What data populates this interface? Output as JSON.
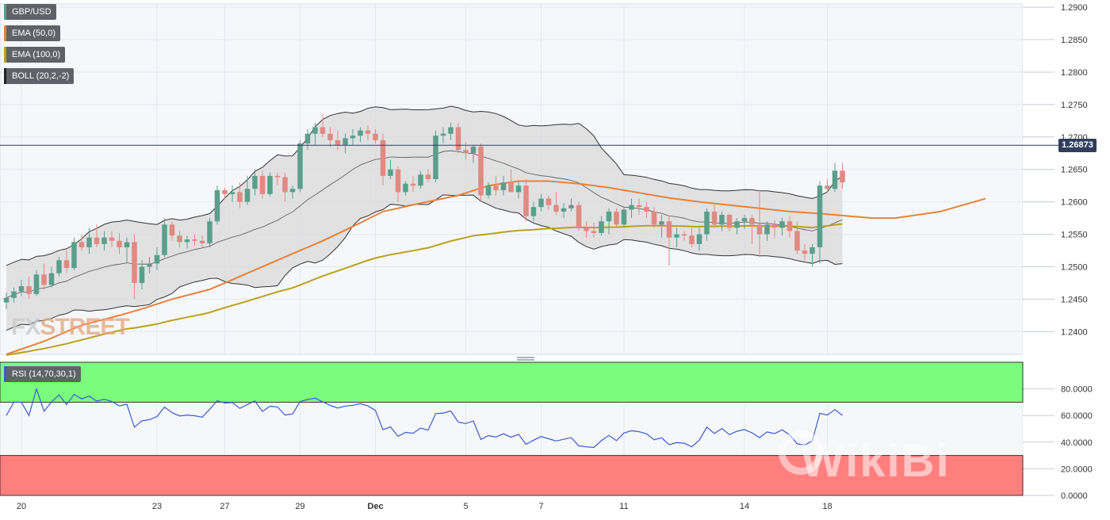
{
  "legend": {
    "pair": "GBP/USD",
    "ema50": "EMA (50,0)",
    "ema100": "EMA (100,0)",
    "boll": "BOLL (20,2,-2)",
    "rsi": "RSI (14,70,30,1)"
  },
  "colors": {
    "up": "#5a9f8a",
    "down": "#e08a82",
    "ema50": "#e8823a",
    "ema100": "#b9a21a",
    "boll": "#333333",
    "rsi_line": "#3a5bd0",
    "overbought": "#7cfc7c",
    "oversold": "#ff7f7f",
    "price_line": "#2f3e5c"
  },
  "logo": {
    "text_a": "FX",
    "text_b": "STREET"
  },
  "watermark": {
    "text": "WikiBi"
  },
  "chart_data": {
    "type": "candlestick",
    "title": "GBP/USD",
    "y_ticks": [
      "1.2900",
      "1.2850",
      "1.2800",
      "1.2750",
      "1.2700",
      "1.2650",
      "1.2600",
      "1.2550",
      "1.2500",
      "1.2450",
      "1.2400"
    ],
    "y_range": [
      1.2365,
      1.2905
    ],
    "last_price": 1.26873,
    "last_price_label": "1.26873",
    "x_ticks": [
      {
        "label": "20",
        "index": 2
      },
      {
        "label": "23",
        "index": 20
      },
      {
        "label": "27",
        "index": 29
      },
      {
        "label": "29",
        "index": 39
      },
      {
        "label": "Dec",
        "index": 49
      },
      {
        "label": "5",
        "index": 61
      },
      {
        "label": "7",
        "index": 71
      },
      {
        "label": "11",
        "index": 82
      },
      {
        "label": "14",
        "index": 98
      },
      {
        "label": "18",
        "index": 109
      }
    ],
    "candles": [
      [
        1.2445,
        1.246,
        1.2435,
        1.2452
      ],
      [
        1.2452,
        1.2468,
        1.2445,
        1.2462
      ],
      [
        1.2462,
        1.248,
        1.2455,
        1.247
      ],
      [
        1.247,
        1.2485,
        1.245,
        1.2458
      ],
      [
        1.2458,
        1.2495,
        1.2455,
        1.2488
      ],
      [
        1.2488,
        1.2505,
        1.2465,
        1.2472
      ],
      [
        1.2472,
        1.25,
        1.2468,
        1.249
      ],
      [
        1.249,
        1.2515,
        1.2485,
        1.251
      ],
      [
        1.251,
        1.2525,
        1.249,
        1.2498
      ],
      [
        1.2498,
        1.2545,
        1.2495,
        1.2538
      ],
      [
        1.2538,
        1.255,
        1.2525,
        1.253
      ],
      [
        1.253,
        1.256,
        1.252,
        1.2545
      ],
      [
        1.2545,
        1.2565,
        1.253,
        1.2535
      ],
      [
        1.2535,
        1.2555,
        1.2525,
        1.2545
      ],
      [
        1.2545,
        1.2555,
        1.253,
        1.254
      ],
      [
        1.254,
        1.2552,
        1.252,
        1.253
      ],
      [
        1.253,
        1.2545,
        1.2505,
        1.2538
      ],
      [
        1.2538,
        1.255,
        1.245,
        1.2475
      ],
      [
        1.2475,
        1.251,
        1.2465,
        1.25
      ],
      [
        1.25,
        1.2515,
        1.249,
        1.2505
      ],
      [
        1.2505,
        1.253,
        1.2495,
        1.2518
      ],
      [
        1.2518,
        1.2575,
        1.2515,
        1.2565
      ],
      [
        1.2565,
        1.257,
        1.254,
        1.2548
      ],
      [
        1.2548,
        1.2555,
        1.253,
        1.2538
      ],
      [
        1.2538,
        1.2548,
        1.2528,
        1.2542
      ],
      [
        1.2542,
        1.255,
        1.2532,
        1.254
      ],
      [
        1.254,
        1.2548,
        1.253,
        1.2536
      ],
      [
        1.2536,
        1.2575,
        1.253,
        1.257
      ],
      [
        1.257,
        1.2625,
        1.2565,
        1.2618
      ],
      [
        1.2618,
        1.2622,
        1.2605,
        1.2612
      ],
      [
        1.2612,
        1.2625,
        1.26,
        1.2615
      ],
      [
        1.2615,
        1.263,
        1.259,
        1.26
      ],
      [
        1.26,
        1.264,
        1.2595,
        1.262
      ],
      [
        1.262,
        1.265,
        1.261,
        1.264
      ],
      [
        1.264,
        1.2648,
        1.2605,
        1.2612
      ],
      [
        1.2612,
        1.2645,
        1.2608,
        1.264
      ],
      [
        1.264,
        1.2645,
        1.2625,
        1.2638
      ],
      [
        1.2638,
        1.2645,
        1.26,
        1.2615
      ],
      [
        1.2615,
        1.2625,
        1.2605,
        1.262
      ],
      [
        1.262,
        1.2695,
        1.2615,
        1.269
      ],
      [
        1.269,
        1.2712,
        1.268,
        1.2705
      ],
      [
        1.2705,
        1.2722,
        1.2688,
        1.2715
      ],
      [
        1.2715,
        1.2735,
        1.27,
        1.2705
      ],
      [
        1.2705,
        1.2715,
        1.2685,
        1.2695
      ],
      [
        1.2695,
        1.271,
        1.268,
        1.2688
      ],
      [
        1.2688,
        1.2705,
        1.2675,
        1.2698
      ],
      [
        1.2698,
        1.2712,
        1.2688,
        1.2702
      ],
      [
        1.2702,
        1.2715,
        1.2692,
        1.271
      ],
      [
        1.271,
        1.2718,
        1.2695,
        1.2705
      ],
      [
        1.2705,
        1.2712,
        1.269,
        1.2695
      ],
      [
        1.2695,
        1.2705,
        1.2625,
        1.264
      ],
      [
        1.264,
        1.2665,
        1.2635,
        1.265
      ],
      [
        1.265,
        1.2655,
        1.26,
        1.2615
      ],
      [
        1.2615,
        1.2632,
        1.261,
        1.2628
      ],
      [
        1.2628,
        1.264,
        1.2615,
        1.2625
      ],
      [
        1.2625,
        1.2648,
        1.262,
        1.2642
      ],
      [
        1.2642,
        1.265,
        1.263,
        1.2635
      ],
      [
        1.2635,
        1.271,
        1.263,
        1.2702
      ],
      [
        1.2702,
        1.2715,
        1.269,
        1.2705
      ],
      [
        1.2705,
        1.2722,
        1.2695,
        1.2715
      ],
      [
        1.2715,
        1.2722,
        1.2675,
        1.268
      ],
      [
        1.268,
        1.2692,
        1.2665,
        1.2675
      ],
      [
        1.2675,
        1.2688,
        1.266,
        1.2685
      ],
      [
        1.2685,
        1.269,
        1.26,
        1.261
      ],
      [
        1.261,
        1.263,
        1.2605,
        1.2625
      ],
      [
        1.2625,
        1.264,
        1.261,
        1.2618
      ],
      [
        1.2618,
        1.264,
        1.261,
        1.263
      ],
      [
        1.263,
        1.265,
        1.262,
        1.2615
      ],
      [
        1.2615,
        1.2632,
        1.2605,
        1.2625
      ],
      [
        1.2625,
        1.2635,
        1.257,
        1.2578
      ],
      [
        1.2578,
        1.26,
        1.257,
        1.2592
      ],
      [
        1.2592,
        1.2612,
        1.2585,
        1.2605
      ],
      [
        1.2605,
        1.261,
        1.2588,
        1.2595
      ],
      [
        1.2595,
        1.2615,
        1.258,
        1.2585
      ],
      [
        1.2585,
        1.2598,
        1.2575,
        1.259
      ],
      [
        1.259,
        1.2605,
        1.2585,
        1.2595
      ],
      [
        1.2595,
        1.26,
        1.2555,
        1.256
      ],
      [
        1.256,
        1.257,
        1.2545,
        1.2555
      ],
      [
        1.2555,
        1.2568,
        1.2545,
        1.2552
      ],
      [
        1.2552,
        1.2578,
        1.2548,
        1.257
      ],
      [
        1.257,
        1.259,
        1.255,
        1.2585
      ],
      [
        1.2585,
        1.259,
        1.256,
        1.2565
      ],
      [
        1.2565,
        1.2592,
        1.256,
        1.2588
      ],
      [
        1.2588,
        1.2605,
        1.2575,
        1.2595
      ],
      [
        1.2595,
        1.2605,
        1.258,
        1.2592
      ],
      [
        1.2592,
        1.26,
        1.2575,
        1.2585
      ],
      [
        1.2585,
        1.2592,
        1.256,
        1.2565
      ],
      [
        1.2565,
        1.258,
        1.2545,
        1.257
      ],
      [
        1.257,
        1.2578,
        1.2502,
        1.2545
      ],
      [
        1.2545,
        1.256,
        1.253,
        1.255
      ],
      [
        1.255,
        1.2555,
        1.254,
        1.2548
      ],
      [
        1.2548,
        1.256,
        1.253,
        1.2535
      ],
      [
        1.2535,
        1.256,
        1.2525,
        1.255
      ],
      [
        1.255,
        1.259,
        1.254,
        1.2585
      ],
      [
        1.2585,
        1.2595,
        1.256,
        1.2565
      ],
      [
        1.2565,
        1.2585,
        1.2555,
        1.258
      ],
      [
        1.258,
        1.2582,
        1.2555,
        1.256
      ],
      [
        1.256,
        1.2575,
        1.255,
        1.257
      ],
      [
        1.257,
        1.258,
        1.2558,
        1.2575
      ],
      [
        1.2575,
        1.258,
        1.2535,
        1.2565
      ],
      [
        1.2565,
        1.2618,
        1.2515,
        1.255
      ],
      [
        1.255,
        1.257,
        1.254,
        1.2565
      ],
      [
        1.2565,
        1.2572,
        1.2545,
        1.256
      ],
      [
        1.256,
        1.2575,
        1.2548,
        1.257
      ],
      [
        1.257,
        1.2578,
        1.2545,
        1.2555
      ],
      [
        1.2555,
        1.257,
        1.252,
        1.2525
      ],
      [
        1.2525,
        1.2535,
        1.251,
        1.252
      ],
      [
        1.252,
        1.2535,
        1.25,
        1.253
      ],
      [
        1.253,
        1.2632,
        1.2505,
        1.2625
      ],
      [
        1.2625,
        1.2635,
        1.2615,
        1.262
      ],
      [
        1.262,
        1.266,
        1.2615,
        1.2648
      ],
      [
        1.2648,
        1.266,
        1.262,
        1.263
      ]
    ],
    "ema50": [
      [
        0,
        1.2365
      ],
      [
        5,
        1.2385
      ],
      [
        10,
        1.241
      ],
      [
        15,
        1.2425
      ],
      [
        18,
        1.2435
      ],
      [
        22,
        1.245
      ],
      [
        27,
        1.2465
      ],
      [
        30,
        1.248
      ],
      [
        33,
        1.2495
      ],
      [
        38,
        1.252
      ],
      [
        42,
        1.254
      ],
      [
        46,
        1.2562
      ],
      [
        50,
        1.2585
      ],
      [
        55,
        1.2598
      ],
      [
        60,
        1.261
      ],
      [
        64,
        1.2625
      ],
      [
        68,
        1.2632
      ],
      [
        72,
        1.2632
      ],
      [
        76,
        1.2628
      ],
      [
        80,
        1.2622
      ],
      [
        84,
        1.2614
      ],
      [
        88,
        1.2606
      ],
      [
        92,
        1.26
      ],
      [
        96,
        1.2595
      ],
      [
        100,
        1.259
      ],
      [
        104,
        1.2585
      ],
      [
        108,
        1.2582
      ],
      [
        112,
        1.2578
      ],
      [
        115,
        1.2575
      ],
      [
        118,
        1.2575
      ],
      [
        121,
        1.258
      ],
      [
        124,
        1.2585
      ],
      [
        127,
        1.2595
      ],
      [
        130,
        1.2605
      ]
    ]
  },
  "rsi": {
    "y_ticks": [
      "80.0000",
      "60.0000",
      "40.0000",
      "20.0000",
      "0.0000"
    ],
    "range": [
      0,
      100
    ],
    "overbought": 70,
    "oversold": 30
  }
}
